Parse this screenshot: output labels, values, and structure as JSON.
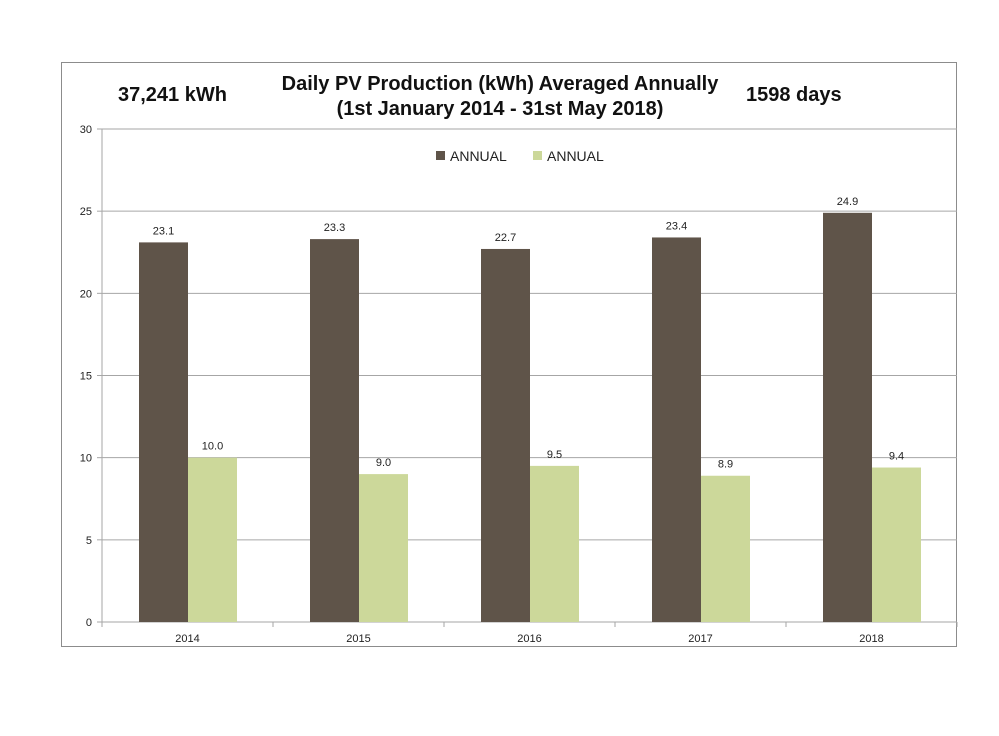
{
  "header": {
    "total": "37,241 kWh",
    "days": "1598 days"
  },
  "chart_data": {
    "type": "bar",
    "title": "Daily PV Production (kWh) Averaged Annually",
    "subtitle": "(1st January 2014 - 31st May 2018)",
    "categories": [
      "2014",
      "2015",
      "2016",
      "2017",
      "2018"
    ],
    "series": [
      {
        "name": "ANNUAL",
        "color": "#5f5449",
        "values": [
          23.1,
          23.3,
          22.7,
          23.4,
          24.9
        ]
      },
      {
        "name": "ANNUAL",
        "color": "#ccd89a",
        "values": [
          10.0,
          9.0,
          9.5,
          8.9,
          9.4
        ]
      }
    ],
    "data_labels": [
      [
        "23.1",
        "23.3",
        "22.7",
        "23.4",
        "24.9"
      ],
      [
        "10.0",
        "9.0",
        "9.5",
        "8.9",
        "9.4"
      ]
    ],
    "ylim": [
      0,
      30
    ],
    "yticks": [
      "0",
      "5",
      "10",
      "15",
      "20",
      "25",
      "30"
    ],
    "grid": true,
    "legend": "top-center",
    "xlabel": "",
    "ylabel": ""
  }
}
